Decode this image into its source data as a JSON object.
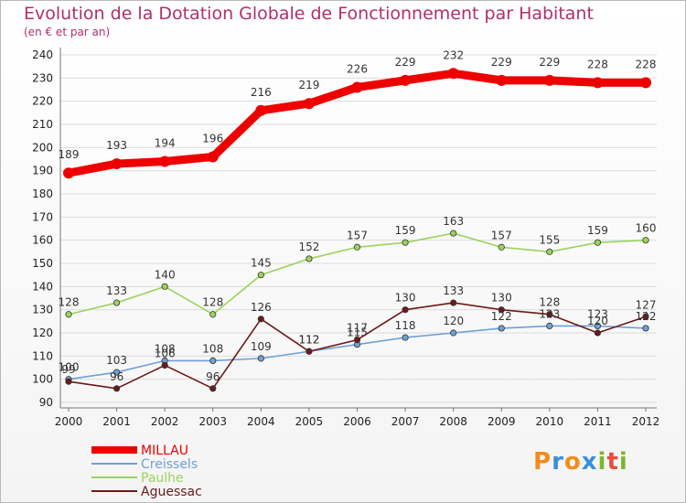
{
  "title": "Evolution de la Dotation Globale de Fonctionnement par Habitant",
  "subtitle": "(en € et par an)",
  "logo": {
    "text": "Proxiti",
    "letters": [
      "P",
      "r",
      "o",
      "x",
      "i",
      "t",
      "i"
    ],
    "colors": [
      "#f28c1c",
      "#3a8fd8",
      "#f28c1c",
      "#3a8fd8",
      "#7cb82f",
      "#e84c3d",
      "#7cb82f"
    ]
  },
  "chart_data": {
    "type": "line",
    "title": "Evolution de la Dotation Globale de Fonctionnement par Habitant",
    "subtitle": "(en € et par an)",
    "xlabel": "",
    "ylabel": "",
    "ylim": [
      90,
      240
    ],
    "yticks": [
      90,
      100,
      110,
      120,
      130,
      140,
      150,
      160,
      170,
      180,
      190,
      200,
      210,
      220,
      230,
      240
    ],
    "categories": [
      "2000",
      "2001",
      "2002",
      "2003",
      "2004",
      "2005",
      "2006",
      "2007",
      "2008",
      "2009",
      "2010",
      "2011",
      "2012"
    ],
    "series": [
      {
        "name": "MILLAU",
        "color": "#ee0000",
        "values": [
          189,
          193,
          194,
          196,
          216,
          219,
          226,
          229,
          232,
          229,
          229,
          228,
          228
        ]
      },
      {
        "name": "Creissels",
        "color": "#6fa0d4",
        "values": [
          100,
          103,
          108,
          108,
          109,
          112,
          115,
          118,
          120,
          122,
          123,
          123,
          122
        ]
      },
      {
        "name": "Paulhe",
        "color": "#9ad45c",
        "values": [
          128,
          133,
          140,
          128,
          145,
          152,
          157,
          159,
          163,
          157,
          155,
          159,
          160
        ]
      },
      {
        "name": "Aguessac",
        "color": "#6b1a1a",
        "values": [
          99,
          96,
          106,
          96,
          126,
          112,
          117,
          130,
          133,
          130,
          128,
          120,
          127
        ]
      }
    ]
  }
}
